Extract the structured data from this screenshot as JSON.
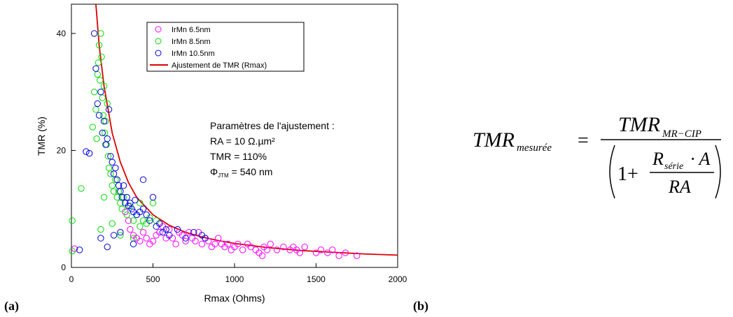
{
  "panel_labels": {
    "a": "(a)",
    "b": "(b)"
  },
  "chart_data": {
    "type": "scatter",
    "xlabel": "Rmax (Ohms)",
    "ylabel": "TMR (%)",
    "xlim": [
      0,
      2000
    ],
    "ylim": [
      0,
      45
    ],
    "x_ticks": [
      0,
      500,
      1000,
      1500,
      2000
    ],
    "y_ticks": [
      0,
      20,
      40
    ],
    "grid": false,
    "legend_position": "top-center",
    "series": [
      {
        "name": "IrMn 6.5nm",
        "color": "#ff00ff",
        "marker": "open-circle",
        "points": [
          [
            20,
            3.2
          ],
          [
            330,
            9.5
          ],
          [
            350,
            8
          ],
          [
            360,
            6.5
          ],
          [
            380,
            5.5
          ],
          [
            400,
            5
          ],
          [
            420,
            4.5
          ],
          [
            440,
            6
          ],
          [
            460,
            5
          ],
          [
            480,
            4
          ],
          [
            500,
            4.5
          ],
          [
            520,
            5.5
          ],
          [
            540,
            6
          ],
          [
            560,
            7
          ],
          [
            580,
            5
          ],
          [
            600,
            6.5
          ],
          [
            620,
            5
          ],
          [
            640,
            4
          ],
          [
            660,
            6
          ],
          [
            680,
            5.5
          ],
          [
            700,
            4.5
          ],
          [
            720,
            6
          ],
          [
            740,
            5
          ],
          [
            760,
            4.5
          ],
          [
            780,
            6
          ],
          [
            800,
            4
          ],
          [
            820,
            5
          ],
          [
            840,
            4.5
          ],
          [
            860,
            3.5
          ],
          [
            880,
            4
          ],
          [
            900,
            5
          ],
          [
            920,
            4
          ],
          [
            940,
            3.5
          ],
          [
            960,
            4
          ],
          [
            980,
            3
          ],
          [
            1000,
            3.5
          ],
          [
            1020,
            4
          ],
          [
            1050,
            3
          ],
          [
            1080,
            4
          ],
          [
            1100,
            3.5
          ],
          [
            1130,
            3
          ],
          [
            1150,
            2.5
          ],
          [
            1170,
            2
          ],
          [
            1180,
            3.5
          ],
          [
            1200,
            3
          ],
          [
            1220,
            4
          ],
          [
            1260,
            3
          ],
          [
            1300,
            3.5
          ],
          [
            1340,
            3
          ],
          [
            1360,
            3.5
          ],
          [
            1380,
            3
          ],
          [
            1400,
            2.5
          ],
          [
            1430,
            3.5
          ],
          [
            1500,
            2.5
          ],
          [
            1530,
            3
          ],
          [
            1570,
            2.5
          ],
          [
            1600,
            3
          ],
          [
            1640,
            2
          ],
          [
            1680,
            2.5
          ],
          [
            1750,
            2
          ]
        ]
      },
      {
        "name": "IrMn 8.5nm",
        "color": "#00dd00",
        "marker": "open-circle",
        "points": [
          [
            5,
            8
          ],
          [
            5,
            2.8
          ],
          [
            60,
            13.5
          ],
          [
            130,
            24
          ],
          [
            140,
            30
          ],
          [
            150,
            27
          ],
          [
            155,
            22
          ],
          [
            160,
            33
          ],
          [
            165,
            35
          ],
          [
            170,
            38
          ],
          [
            175,
            32
          ],
          [
            180,
            40
          ],
          [
            185,
            36
          ],
          [
            190,
            29
          ],
          [
            195,
            26
          ],
          [
            200,
            31
          ],
          [
            205,
            23
          ],
          [
            210,
            25
          ],
          [
            215,
            21
          ],
          [
            220,
            28
          ],
          [
            225,
            19
          ],
          [
            230,
            17
          ],
          [
            240,
            16
          ],
          [
            250,
            14
          ],
          [
            260,
            13
          ],
          [
            270,
            15
          ],
          [
            280,
            12
          ],
          [
            290,
            13
          ],
          [
            300,
            11
          ],
          [
            310,
            10
          ],
          [
            320,
            12
          ],
          [
            340,
            9
          ],
          [
            360,
            10.5
          ],
          [
            380,
            8
          ],
          [
            400,
            9
          ],
          [
            420,
            7
          ],
          [
            440,
            8
          ],
          [
            460,
            7.5
          ],
          [
            480,
            8.5
          ],
          [
            500,
            11
          ],
          [
            520,
            8
          ],
          [
            200,
            12
          ],
          [
            180,
            6.5
          ],
          [
            250,
            7.5
          ],
          [
            300,
            5.5
          ],
          [
            380,
            5
          ],
          [
            420,
            11
          ]
        ]
      },
      {
        "name": "IrMn 10.5nm",
        "color": "#0000dd",
        "marker": "open-circle",
        "points": [
          [
            50,
            3
          ],
          [
            90,
            19.8
          ],
          [
            110,
            19.5
          ],
          [
            140,
            40
          ],
          [
            150,
            34
          ],
          [
            160,
            28
          ],
          [
            170,
            26
          ],
          [
            180,
            30
          ],
          [
            190,
            23
          ],
          [
            200,
            25
          ],
          [
            210,
            21
          ],
          [
            220,
            22
          ],
          [
            230,
            27
          ],
          [
            240,
            19
          ],
          [
            250,
            18
          ],
          [
            260,
            16
          ],
          [
            270,
            17
          ],
          [
            280,
            15
          ],
          [
            290,
            14
          ],
          [
            300,
            13
          ],
          [
            310,
            12
          ],
          [
            320,
            14
          ],
          [
            330,
            11
          ],
          [
            340,
            12
          ],
          [
            350,
            10.5
          ],
          [
            360,
            11
          ],
          [
            370,
            10
          ],
          [
            380,
            9.5
          ],
          [
            390,
            11.5
          ],
          [
            400,
            9
          ],
          [
            420,
            9.5
          ],
          [
            440,
            10
          ],
          [
            460,
            9
          ],
          [
            480,
            8
          ],
          [
            500,
            12
          ],
          [
            520,
            7
          ],
          [
            540,
            7.5
          ],
          [
            560,
            6
          ],
          [
            580,
            6.5
          ],
          [
            600,
            5.5
          ],
          [
            650,
            6.5
          ],
          [
            700,
            5
          ],
          [
            750,
            6
          ],
          [
            800,
            5.5
          ],
          [
            820,
            5
          ],
          [
            180,
            5
          ],
          [
            220,
            3.5
          ],
          [
            260,
            5.5
          ],
          [
            300,
            6
          ],
          [
            380,
            4
          ],
          [
            440,
            15
          ]
        ]
      },
      {
        "name": "Ajustement de TMR (Rmax)",
        "color": "#dd0000",
        "marker": "line",
        "points": [
          [
            150,
            45
          ],
          [
            170,
            38
          ],
          [
            200,
            31
          ],
          [
            250,
            23
          ],
          [
            300,
            18
          ],
          [
            350,
            14.5
          ],
          [
            400,
            12
          ],
          [
            500,
            9
          ],
          [
            600,
            7.2
          ],
          [
            700,
            6
          ],
          [
            800,
            5.2
          ],
          [
            900,
            4.6
          ],
          [
            1000,
            4.1
          ],
          [
            1200,
            3.4
          ],
          [
            1400,
            2.9
          ],
          [
            1600,
            2.6
          ],
          [
            1800,
            2.3
          ],
          [
            2000,
            2.1
          ]
        ]
      }
    ],
    "annotation": {
      "line1": "Paramètres de l'ajustement :",
      "line2": "RA = 10 Ω.µm²",
      "line3": "TMR = 110%",
      "line4_symbol": "Φ",
      "line4_sub": "JTM",
      "line4_value": " = 540 nm"
    }
  },
  "formula": {
    "lhs": "TMR",
    "lhs_sub": "mesurée",
    "equals": "=",
    "num": "TMR",
    "num_sub": "MR−CIP",
    "one_plus": "1+",
    "r": "R",
    "r_sub": "série",
    "dot_a": "· A",
    "ra": "RA"
  }
}
